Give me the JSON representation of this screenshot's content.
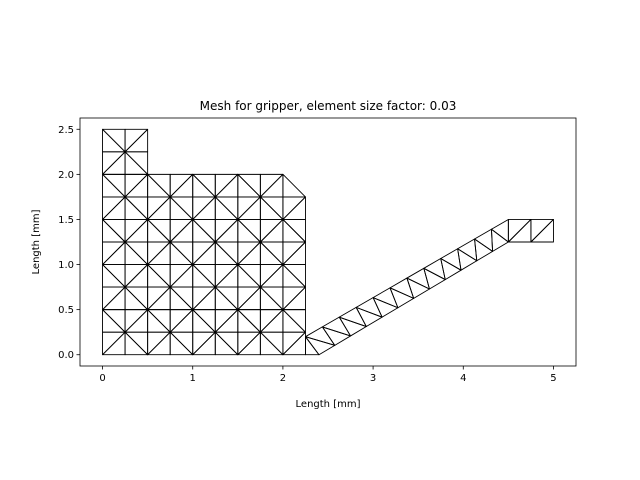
{
  "chart_data": {
    "type": "mesh",
    "title": "Mesh for gripper, element size factor: 0.03",
    "xlabel": "Length [mm]",
    "ylabel": "Length [mm]",
    "xlim": [
      -0.25,
      5.25
    ],
    "ylim": [
      -0.125,
      2.625
    ],
    "xticks": [
      0,
      1,
      2,
      3,
      4,
      5
    ],
    "yticks": [
      0.0,
      0.5,
      1.0,
      1.5,
      2.0,
      2.5
    ],
    "xtick_labels": [
      "0",
      "1",
      "2",
      "3",
      "4",
      "5"
    ],
    "ytick_labels": [
      "0.0",
      "0.5",
      "1.0",
      "1.5",
      "2.0",
      "2.5"
    ],
    "grid": false,
    "element_size": 0.25,
    "line_color": "#000000",
    "body_outline": [
      [
        0,
        0
      ],
      [
        2.25,
        0
      ],
      [
        2.25,
        1.75
      ],
      [
        2.1,
        2.0
      ],
      [
        0.5,
        2.0
      ],
      [
        0.5,
        2.5
      ],
      [
        0,
        2.5
      ]
    ],
    "arm_outline": [
      [
        2.25,
        0
      ],
      [
        2.4,
        0
      ],
      [
        4.5,
        1.25
      ],
      [
        5.0,
        1.25
      ],
      [
        5.0,
        1.5
      ],
      [
        4.5,
        1.5
      ],
      [
        2.25,
        0.2
      ]
    ]
  }
}
